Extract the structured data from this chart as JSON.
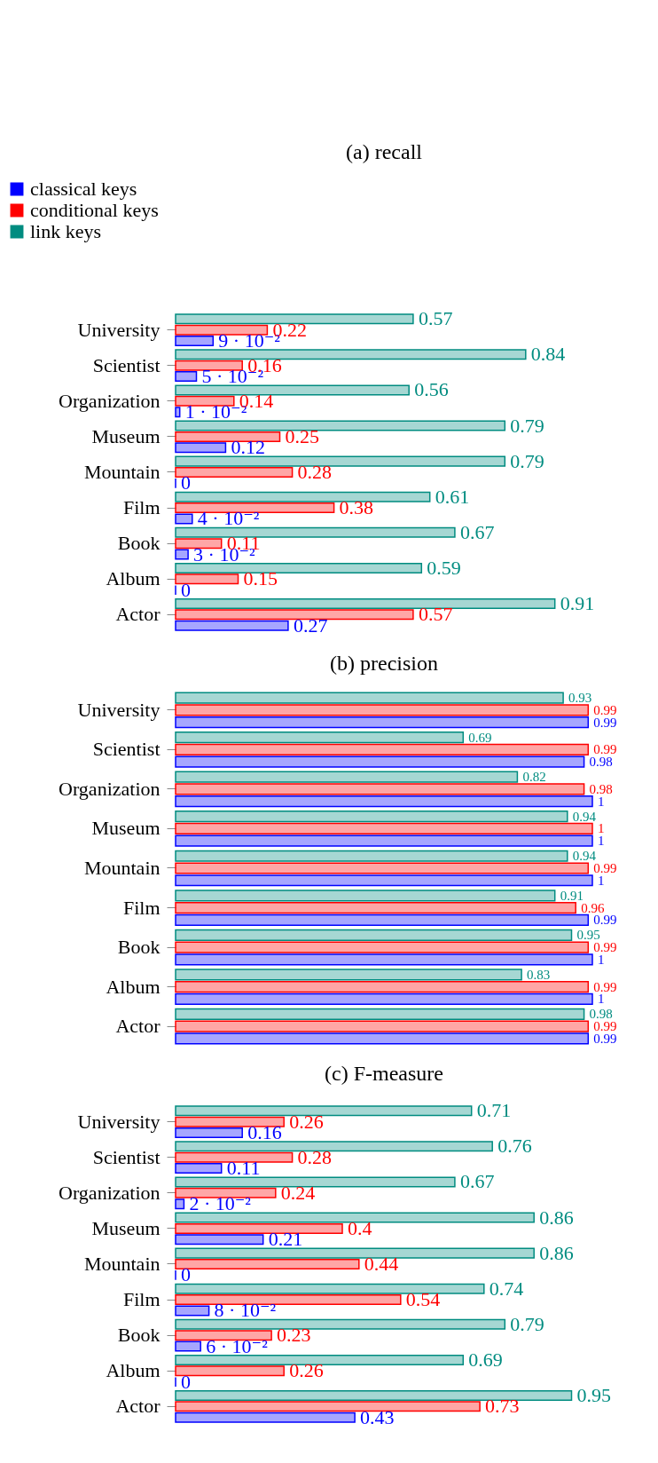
{
  "chart_data": [
    {
      "type": "bar",
      "orientation": "horizontal",
      "title": "(a) recall",
      "legend": "top left",
      "categories": [
        "University",
        "Scientist",
        "Organization",
        "Museum",
        "Mountain",
        "Film",
        "Book",
        "Album",
        "Actor"
      ],
      "series": [
        {
          "name": "classical keys",
          "color": "#0000ff",
          "values": [
            0.09,
            0.05,
            0.01,
            0.12,
            0,
            0.04,
            0.03,
            0,
            0.27
          ],
          "value_labels": [
            "9 · 10⁻²",
            "5 · 10⁻²",
            "1 · 10⁻²",
            "0.12",
            "0",
            "4 · 10⁻²",
            "3 · 10⁻²",
            "0",
            "0.27"
          ]
        },
        {
          "name": "conditional keys",
          "color": "#ff0000",
          "values": [
            0.22,
            0.16,
            0.14,
            0.25,
            0.28,
            0.38,
            0.11,
            0.15,
            0.57
          ],
          "value_labels": [
            "0.22",
            "0.16",
            "0.14",
            "0.25",
            "0.28",
            "0.38",
            "0.11",
            "0.15",
            "0.57"
          ]
        },
        {
          "name": "link keys",
          "color": "#008c80",
          "values": [
            0.57,
            0.84,
            0.56,
            0.79,
            0.79,
            0.61,
            0.67,
            0.59,
            0.91
          ],
          "value_labels": [
            "0.57",
            "0.84",
            "0.56",
            "0.79",
            "0.79",
            "0.61",
            "0.67",
            "0.59",
            "0.91"
          ]
        }
      ]
    },
    {
      "type": "bar",
      "orientation": "horizontal",
      "title": "(b) precision",
      "categories": [
        "University",
        "Scientist",
        "Organization",
        "Museum",
        "Mountain",
        "Film",
        "Book",
        "Album",
        "Actor"
      ],
      "series": [
        {
          "color": "#0000ff",
          "values": [
            0.99,
            0.98,
            1,
            1,
            1,
            0.99,
            1,
            1,
            0.99
          ],
          "value_labels": [
            "0.99",
            "0.98",
            "1",
            "1",
            "1",
            "0.99",
            "1",
            "1",
            "0.99"
          ]
        },
        {
          "color": "#ff0000",
          "values": [
            0.99,
            0.99,
            0.98,
            1,
            0.99,
            0.96,
            0.99,
            0.99,
            0.99
          ],
          "value_labels": [
            "0.99",
            "0.99",
            "0.98",
            "1",
            "0.99",
            "0.96",
            "0.99",
            "0.99",
            "0.99"
          ]
        },
        {
          "color": "#008c80",
          "values": [
            0.93,
            0.69,
            0.82,
            0.94,
            0.94,
            0.91,
            0.95,
            0.83,
            0.98
          ],
          "value_labels": [
            "0.93",
            "0.69",
            "0.82",
            "0.94",
            "0.94",
            "0.91",
            "0.95",
            "0.83",
            "0.98"
          ]
        }
      ]
    },
    {
      "type": "bar",
      "orientation": "horizontal",
      "title": "(c) F-measure",
      "categories": [
        "University",
        "Scientist",
        "Organization",
        "Museum",
        "Mountain",
        "Film",
        "Book",
        "Album",
        "Actor"
      ],
      "series": [
        {
          "color": "#0000ff",
          "values": [
            0.16,
            0.11,
            0.02,
            0.21,
            0,
            0.08,
            0.06,
            0,
            0.43
          ],
          "value_labels": [
            "0.16",
            "0.11",
            "2 · 10⁻²",
            "0.21",
            "0",
            "8 · 10⁻²",
            "6 · 10⁻²",
            "0",
            "0.43"
          ]
        },
        {
          "color": "#ff0000",
          "values": [
            0.26,
            0.28,
            0.24,
            0.4,
            0.44,
            0.54,
            0.23,
            0.26,
            0.73
          ],
          "value_labels": [
            "0.26",
            "0.28",
            "0.24",
            "0.4",
            "0.44",
            "0.54",
            "0.23",
            "0.26",
            "0.73"
          ]
        },
        {
          "color": "#008c80",
          "values": [
            0.71,
            0.76,
            0.67,
            0.86,
            0.86,
            0.74,
            0.79,
            0.69,
            0.95
          ],
          "value_labels": [
            "0.71",
            "0.76",
            "0.67",
            "0.86",
            "0.86",
            "0.74",
            "0.79",
            "0.69",
            "0.95"
          ]
        }
      ]
    }
  ]
}
